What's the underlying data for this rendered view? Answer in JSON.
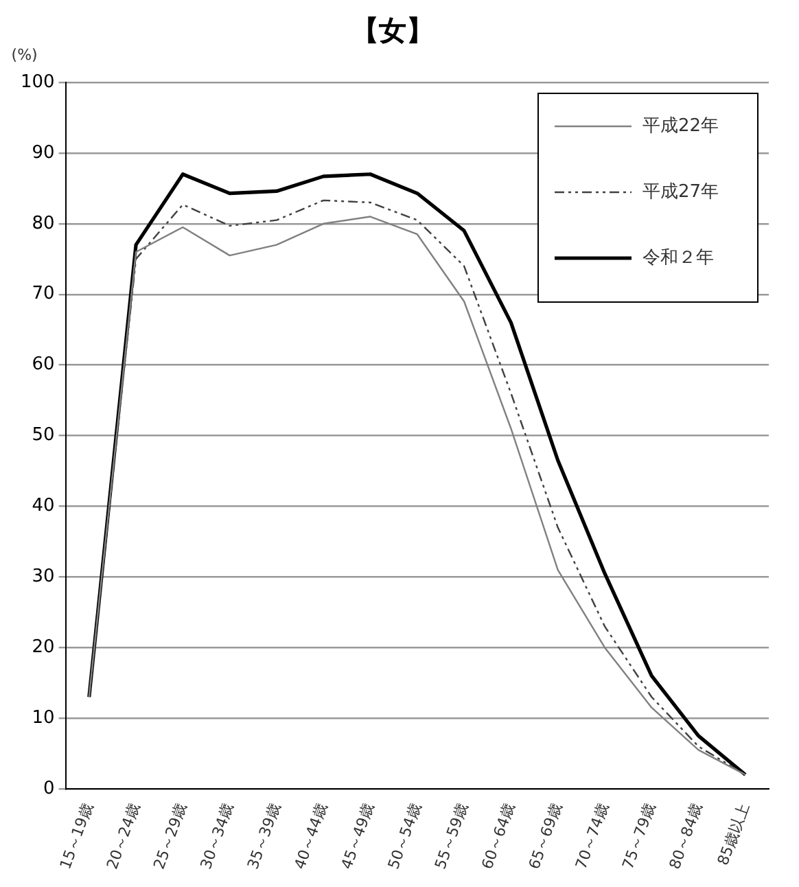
{
  "chart_data": {
    "type": "line",
    "title": "【女】",
    "ylabel": "(%)",
    "categories": [
      "15～19歳",
      "20～24歳",
      "25～29歳",
      "30～34歳",
      "35～39歳",
      "40～44歳",
      "45～49歳",
      "50～54歳",
      "55～59歳",
      "60～64歳",
      "65～69歳",
      "70～74歳",
      "75～79歳",
      "80～84歳",
      "85歳以上"
    ],
    "series": [
      {
        "name": "平成22年",
        "color": "#808080",
        "line_style": "solid",
        "values": [
          13,
          76,
          79.5,
          75.5,
          77,
          80,
          81,
          78.5,
          69,
          51,
          31,
          20,
          11.5,
          5.5,
          2
        ]
      },
      {
        "name": "平成27年",
        "color": "#404040",
        "line_style": "dashed",
        "values": [
          13,
          75,
          82.7,
          79.7,
          80.5,
          83.3,
          83,
          80.5,
          74,
          56,
          37,
          23,
          13,
          6,
          2
        ]
      },
      {
        "name": "令和２年",
        "color": "#000000",
        "line_style": "solid",
        "values": [
          13,
          77,
          87,
          84.3,
          84.6,
          86.7,
          87,
          84.3,
          79,
          66,
          46.5,
          30.5,
          16,
          7.5,
          2
        ]
      }
    ],
    "ylim": [
      0,
      100
    ],
    "yticks": [
      0,
      10,
      20,
      30,
      40,
      50,
      60,
      70,
      80,
      90,
      100
    ],
    "grid": "y",
    "legend": "top right",
    "marker": "none"
  }
}
